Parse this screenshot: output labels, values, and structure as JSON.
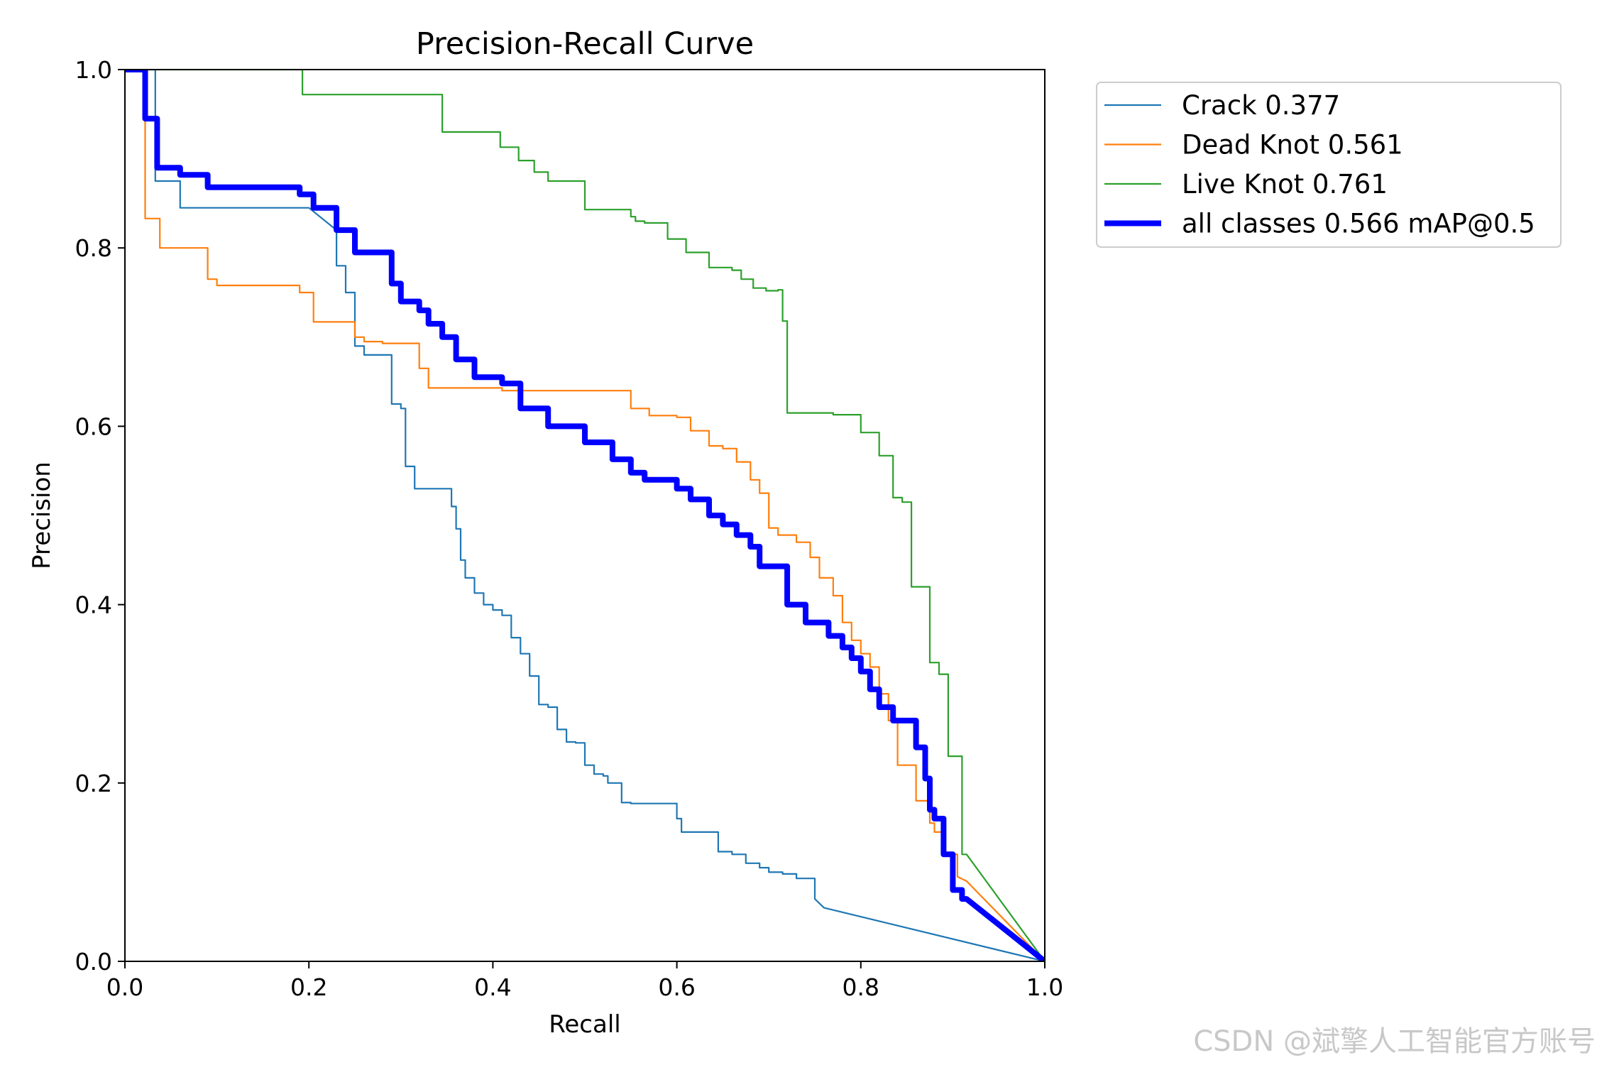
{
  "chart_data": {
    "type": "line",
    "title": "Precision-Recall Curve",
    "xlabel": "Recall",
    "ylabel": "Precision",
    "xlim": [
      0.0,
      1.0
    ],
    "ylim": [
      0.0,
      1.0
    ],
    "xticks": [
      "0.0",
      "0.2",
      "0.4",
      "0.6",
      "0.8",
      "1.0"
    ],
    "yticks": [
      "0.0",
      "0.2",
      "0.4",
      "0.6",
      "0.8",
      "1.0"
    ],
    "grid": false,
    "legend_position": "outside-top-right",
    "series": [
      {
        "name": "Crack 0.377",
        "color": "#1f77b4",
        "width": "thin",
        "x": [
          0.0,
          0.033,
          0.033,
          0.035,
          0.035,
          0.06,
          0.06,
          0.2,
          0.23,
          0.23,
          0.24,
          0.24,
          0.25,
          0.25,
          0.26,
          0.26,
          0.265,
          0.265,
          0.29,
          0.29,
          0.3,
          0.3,
          0.305,
          0.305,
          0.315,
          0.315,
          0.355,
          0.355,
          0.36,
          0.36,
          0.365,
          0.365,
          0.37,
          0.37,
          0.38,
          0.38,
          0.39,
          0.39,
          0.4,
          0.4,
          0.41,
          0.41,
          0.42,
          0.42,
          0.43,
          0.43,
          0.44,
          0.44,
          0.45,
          0.45,
          0.46,
          0.46,
          0.47,
          0.47,
          0.48,
          0.48,
          0.49,
          0.49,
          0.5,
          0.5,
          0.51,
          0.51,
          0.52,
          0.52,
          0.525,
          0.525,
          0.53,
          0.53,
          0.54,
          0.54,
          0.55,
          0.55,
          0.56,
          0.56,
          0.6,
          0.6,
          0.605,
          0.605,
          0.63,
          0.63,
          0.645,
          0.645,
          0.66,
          0.66,
          0.675,
          0.675,
          0.69,
          0.69,
          0.7,
          0.7,
          0.715,
          0.715,
          0.73,
          0.73,
          0.75,
          0.75,
          0.76,
          1.0
        ],
        "y": [
          1.0,
          1.0,
          0.875,
          0.875,
          0.875,
          0.875,
          0.845,
          0.845,
          0.82,
          0.78,
          0.78,
          0.75,
          0.75,
          0.69,
          0.69,
          0.68,
          0.68,
          0.68,
          0.68,
          0.625,
          0.625,
          0.62,
          0.62,
          0.555,
          0.555,
          0.53,
          0.53,
          0.51,
          0.51,
          0.485,
          0.485,
          0.45,
          0.45,
          0.43,
          0.43,
          0.413,
          0.413,
          0.4,
          0.4,
          0.394,
          0.394,
          0.388,
          0.388,
          0.363,
          0.363,
          0.345,
          0.345,
          0.32,
          0.32,
          0.288,
          0.288,
          0.285,
          0.285,
          0.26,
          0.26,
          0.246,
          0.246,
          0.245,
          0.245,
          0.22,
          0.22,
          0.21,
          0.21,
          0.208,
          0.208,
          0.2,
          0.2,
          0.2,
          0.2,
          0.178,
          0.178,
          0.177,
          0.177,
          0.177,
          0.177,
          0.16,
          0.16,
          0.145,
          0.145,
          0.145,
          0.145,
          0.123,
          0.123,
          0.12,
          0.12,
          0.11,
          0.11,
          0.105,
          0.105,
          0.1,
          0.1,
          0.098,
          0.098,
          0.093,
          0.093,
          0.07,
          0.06,
          0.0
        ]
      },
      {
        "name": "Dead Knot 0.561",
        "color": "#ff7f0e",
        "width": "thin",
        "x": [
          0.0,
          0.022,
          0.022,
          0.038,
          0.038,
          0.09,
          0.09,
          0.1,
          0.1,
          0.19,
          0.19,
          0.205,
          0.205,
          0.25,
          0.25,
          0.26,
          0.26,
          0.28,
          0.28,
          0.32,
          0.32,
          0.33,
          0.33,
          0.345,
          0.345,
          0.41,
          0.41,
          0.42,
          0.42,
          0.44,
          0.44,
          0.55,
          0.55,
          0.57,
          0.57,
          0.6,
          0.6,
          0.615,
          0.615,
          0.635,
          0.635,
          0.65,
          0.65,
          0.665,
          0.665,
          0.68,
          0.68,
          0.69,
          0.69,
          0.7,
          0.7,
          0.71,
          0.71,
          0.73,
          0.73,
          0.745,
          0.745,
          0.755,
          0.755,
          0.77,
          0.77,
          0.78,
          0.78,
          0.79,
          0.79,
          0.8,
          0.8,
          0.81,
          0.81,
          0.82,
          0.82,
          0.83,
          0.83,
          0.84,
          0.84,
          0.86,
          0.86,
          0.875,
          0.875,
          0.88,
          0.88,
          0.89,
          0.89,
          0.905,
          0.905,
          0.915,
          1.0
        ],
        "y": [
          1.0,
          1.0,
          0.833,
          0.833,
          0.8,
          0.8,
          0.765,
          0.765,
          0.758,
          0.758,
          0.75,
          0.75,
          0.717,
          0.717,
          0.7,
          0.7,
          0.695,
          0.695,
          0.693,
          0.693,
          0.665,
          0.665,
          0.643,
          0.643,
          0.643,
          0.643,
          0.64,
          0.64,
          0.64,
          0.64,
          0.64,
          0.64,
          0.62,
          0.62,
          0.612,
          0.612,
          0.61,
          0.61,
          0.595,
          0.595,
          0.578,
          0.578,
          0.575,
          0.575,
          0.56,
          0.56,
          0.54,
          0.54,
          0.525,
          0.525,
          0.486,
          0.486,
          0.478,
          0.478,
          0.47,
          0.47,
          0.453,
          0.453,
          0.43,
          0.43,
          0.41,
          0.41,
          0.38,
          0.38,
          0.36,
          0.36,
          0.345,
          0.345,
          0.33,
          0.33,
          0.3,
          0.3,
          0.27,
          0.27,
          0.22,
          0.22,
          0.18,
          0.18,
          0.155,
          0.155,
          0.145,
          0.145,
          0.12,
          0.12,
          0.095,
          0.09,
          0.0
        ]
      },
      {
        "name": "Live Knot 0.761",
        "color": "#2ca02c",
        "width": "thin",
        "x": [
          0.0,
          0.193,
          0.193,
          0.345,
          0.345,
          0.408,
          0.408,
          0.428,
          0.428,
          0.445,
          0.445,
          0.46,
          0.46,
          0.5,
          0.5,
          0.55,
          0.55,
          0.555,
          0.555,
          0.565,
          0.565,
          0.59,
          0.59,
          0.61,
          0.61,
          0.635,
          0.635,
          0.66,
          0.66,
          0.67,
          0.67,
          0.683,
          0.683,
          0.697,
          0.697,
          0.71,
          0.71,
          0.715,
          0.715,
          0.72,
          0.72,
          0.77,
          0.77,
          0.8,
          0.8,
          0.82,
          0.82,
          0.835,
          0.835,
          0.845,
          0.845,
          0.855,
          0.855,
          0.875,
          0.875,
          0.885,
          0.885,
          0.895,
          0.895,
          0.91,
          0.91,
          0.915,
          1.0
        ],
        "y": [
          1.0,
          1.0,
          0.972,
          0.972,
          0.93,
          0.93,
          0.913,
          0.913,
          0.898,
          0.898,
          0.885,
          0.885,
          0.875,
          0.875,
          0.843,
          0.843,
          0.835,
          0.835,
          0.83,
          0.83,
          0.828,
          0.828,
          0.81,
          0.81,
          0.795,
          0.795,
          0.778,
          0.778,
          0.775,
          0.775,
          0.765,
          0.765,
          0.755,
          0.755,
          0.752,
          0.752,
          0.753,
          0.753,
          0.718,
          0.718,
          0.615,
          0.615,
          0.613,
          0.613,
          0.593,
          0.593,
          0.567,
          0.567,
          0.52,
          0.52,
          0.515,
          0.515,
          0.42,
          0.42,
          0.335,
          0.335,
          0.322,
          0.322,
          0.23,
          0.23,
          0.12,
          0.12,
          0.0
        ]
      },
      {
        "name": "all classes 0.566 mAP@0.5",
        "color": "#0000ff",
        "width": "thick",
        "x": [
          0.0,
          0.022,
          0.022,
          0.035,
          0.035,
          0.06,
          0.06,
          0.09,
          0.09,
          0.1,
          0.1,
          0.19,
          0.19,
          0.205,
          0.205,
          0.23,
          0.23,
          0.25,
          0.25,
          0.29,
          0.29,
          0.3,
          0.3,
          0.32,
          0.32,
          0.33,
          0.33,
          0.345,
          0.345,
          0.36,
          0.36,
          0.38,
          0.38,
          0.41,
          0.41,
          0.43,
          0.43,
          0.46,
          0.46,
          0.5,
          0.5,
          0.53,
          0.53,
          0.55,
          0.55,
          0.565,
          0.565,
          0.6,
          0.6,
          0.615,
          0.615,
          0.635,
          0.635,
          0.65,
          0.65,
          0.665,
          0.665,
          0.68,
          0.68,
          0.69,
          0.69,
          0.72,
          0.72,
          0.74,
          0.74,
          0.765,
          0.765,
          0.78,
          0.78,
          0.79,
          0.79,
          0.8,
          0.8,
          0.81,
          0.81,
          0.82,
          0.82,
          0.835,
          0.835,
          0.86,
          0.86,
          0.87,
          0.87,
          0.875,
          0.875,
          0.88,
          0.88,
          0.89,
          0.89,
          0.9,
          0.9,
          0.91,
          0.91,
          0.915,
          1.0
        ],
        "y": [
          1.0,
          1.0,
          0.945,
          0.945,
          0.89,
          0.89,
          0.882,
          0.882,
          0.868,
          0.868,
          0.868,
          0.868,
          0.86,
          0.86,
          0.845,
          0.845,
          0.82,
          0.82,
          0.795,
          0.795,
          0.76,
          0.76,
          0.74,
          0.74,
          0.73,
          0.73,
          0.715,
          0.715,
          0.7,
          0.7,
          0.675,
          0.675,
          0.655,
          0.655,
          0.648,
          0.648,
          0.62,
          0.62,
          0.6,
          0.6,
          0.582,
          0.582,
          0.563,
          0.563,
          0.548,
          0.548,
          0.54,
          0.54,
          0.53,
          0.53,
          0.518,
          0.518,
          0.5,
          0.5,
          0.49,
          0.49,
          0.478,
          0.478,
          0.465,
          0.465,
          0.443,
          0.443,
          0.4,
          0.4,
          0.38,
          0.38,
          0.365,
          0.365,
          0.352,
          0.352,
          0.34,
          0.34,
          0.325,
          0.325,
          0.305,
          0.305,
          0.285,
          0.285,
          0.27,
          0.27,
          0.24,
          0.24,
          0.205,
          0.205,
          0.17,
          0.17,
          0.16,
          0.16,
          0.12,
          0.12,
          0.08,
          0.08,
          0.07,
          0.07,
          0.0
        ]
      }
    ]
  },
  "watermark": "CSDN @斌擎人工智能官方账号"
}
